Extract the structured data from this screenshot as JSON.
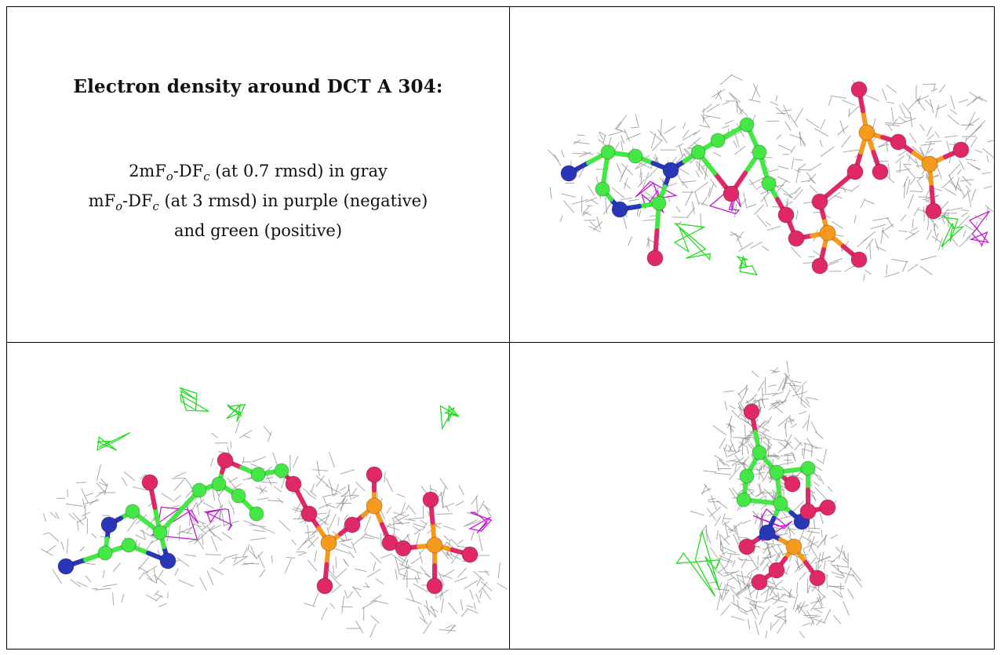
{
  "title": "Electron density around DCT A 304:",
  "legend": {
    "line1": {
      "pre": "2mF",
      "sub1": "o",
      "mid": "-DF",
      "sub2": "c",
      "post": " (at 0.7 rmsd) in gray"
    },
    "line2": {
      "pre": "mF",
      "sub1": "o",
      "mid": "-DF",
      "sub2": "c",
      "post": " (at 3 rmsd) in purple (negative)"
    },
    "line3": "and green (positive)"
  },
  "colors": {
    "mesh": "#8c8c8c",
    "carbon": "#44e844",
    "nitrogen": "#2a36b8",
    "oxygen": "#e02868",
    "phosphorus": "#f59a1c",
    "negative_density": "#c020d0",
    "positive_density": "#22dd22",
    "border": "#000000"
  }
}
